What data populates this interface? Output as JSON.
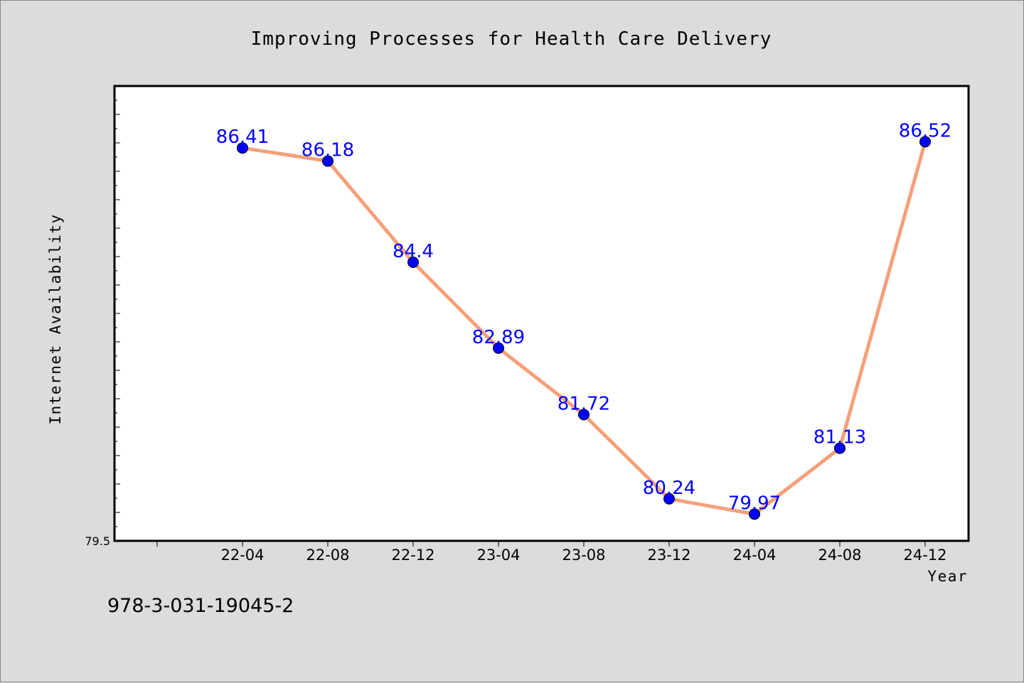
{
  "footer_text": "978-3-031-19045-2",
  "colors": {
    "background": "#dcdcdc",
    "plot_background": "#ffffff",
    "line": "#f4a07a",
    "marker": "#0000ff",
    "data_label": "#0000ff"
  },
  "chart_data": {
    "type": "line",
    "title": "Improving Processes for Health Care Delivery",
    "xlabel": "Year",
    "ylabel": "Internet Availability",
    "categories": [
      "22-04",
      "22-08",
      "22-12",
      "23-04",
      "23-08",
      "23-12",
      "24-04",
      "24-08",
      "24-12"
    ],
    "series": [
      {
        "values": [
          86.41,
          86.18,
          84.4,
          82.89,
          81.72,
          80.24,
          79.97,
          81.13,
          86.52
        ],
        "labels": [
          "86.41",
          "86.18",
          "84.4",
          "82.89",
          "81.72",
          "80.24",
          "79.97",
          "81.13",
          "86.52"
        ]
      }
    ],
    "ylim": [
      79.5,
      87.5
    ],
    "ytick_labels": [
      "79.5"
    ],
    "grid": false,
    "legend": "none"
  }
}
